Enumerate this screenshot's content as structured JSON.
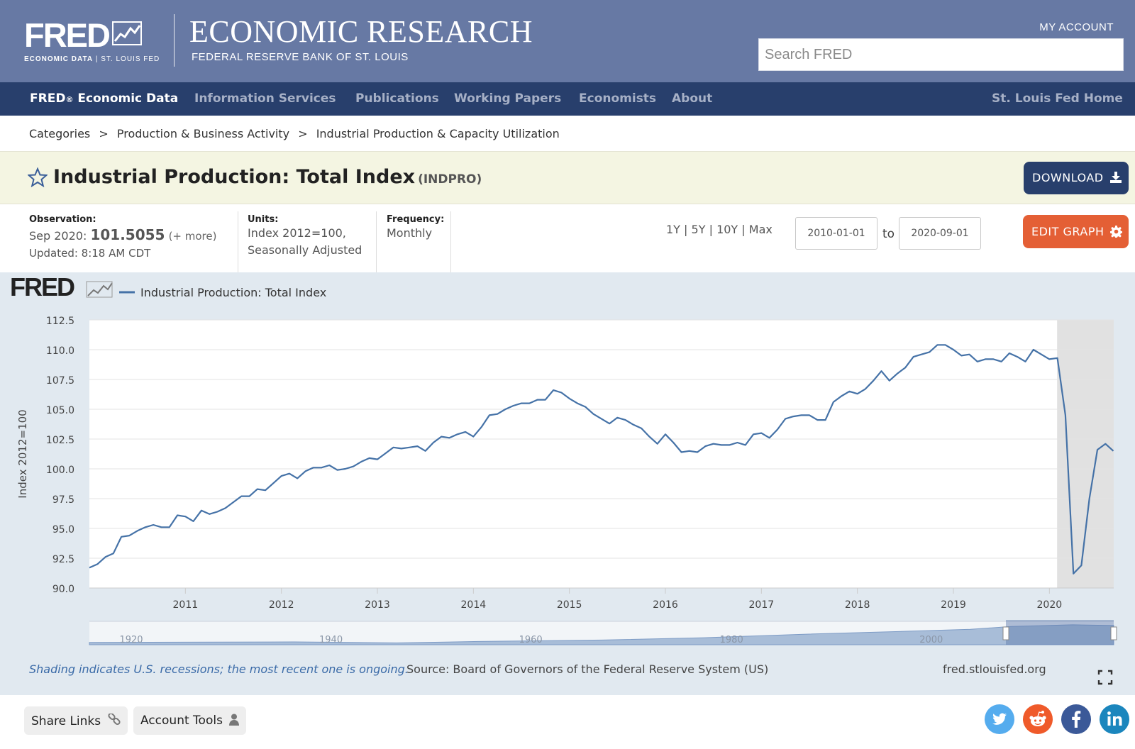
{
  "header": {
    "logo_text": "FRED",
    "logo_sub_bold": "ECONOMIC DATA",
    "logo_sub_sep": "|",
    "logo_sub_rest": "ST. LOUIS FED",
    "title": "ECONOMIC RESEARCH",
    "subtitle": "FEDERAL RESERVE BANK OF ST. LOUIS",
    "my_account": "MY ACCOUNT",
    "search_placeholder": "Search FRED"
  },
  "nav": {
    "items": [
      {
        "label": "FRED",
        "suffix": "®",
        "rest": " Economic Data"
      },
      {
        "label": "Information Services"
      },
      {
        "label": "Publications"
      },
      {
        "label": "Working Papers"
      },
      {
        "label": "Economists"
      },
      {
        "label": "About"
      }
    ],
    "right": "St. Louis Fed Home"
  },
  "breadcrumb": {
    "items": [
      "Categories",
      ">",
      "Production & Business Activity",
      ">",
      "Industrial Production & Capacity Utilization"
    ]
  },
  "series": {
    "title": "Industrial Production: Total Index",
    "id": "(INDPRO)",
    "download_label": "DOWNLOAD"
  },
  "meta": {
    "observation_label": "Observation:",
    "observation_date": "Sep 2020:",
    "observation_value": "101.5055",
    "more": "(+ more)",
    "updated": "Updated: 8:18 AM CDT",
    "units_label": "Units:",
    "units_line1": "Index 2012=100,",
    "units_line2": "Seasonally Adjusted",
    "frequency_label": "Frequency:",
    "frequency": "Monthly"
  },
  "controls": {
    "ranges": [
      "1Y",
      "|",
      "5Y",
      "|",
      "10Y",
      "|",
      "Max"
    ],
    "start_date": "2010-01-01",
    "to": "to",
    "end_date": "2020-09-01",
    "edit_label": "EDIT GRAPH"
  },
  "chart_data": {
    "type": "line",
    "logo": "FRED",
    "legend": "Industrial Production: Total Index",
    "ylabel": "Index 2012=100",
    "ylim": [
      90.0,
      112.5
    ],
    "yticks": [
      "112.5",
      "110.0",
      "107.5",
      "105.0",
      "102.5",
      "100.0",
      "97.5",
      "95.0",
      "92.5",
      "90.0"
    ],
    "xlim": [
      2010.0,
      2020.67
    ],
    "xticks": [
      "2011",
      "2012",
      "2013",
      "2014",
      "2015",
      "2016",
      "2017",
      "2018",
      "2019",
      "2020"
    ],
    "recession": [
      2020.08,
      2020.67
    ],
    "navigator_labels": [
      "1920",
      "1940",
      "1960",
      "1980",
      "2000"
    ],
    "series": [
      {
        "name": "Industrial Production: Total Index",
        "x_start": "2010-01",
        "values": [
          91.7,
          92.0,
          92.6,
          92.9,
          94.3,
          94.4,
          94.8,
          95.1,
          95.3,
          95.1,
          95.1,
          96.1,
          96.0,
          95.6,
          96.5,
          96.2,
          96.4,
          96.7,
          97.2,
          97.7,
          97.7,
          98.3,
          98.2,
          98.8,
          99.4,
          99.6,
          99.2,
          99.8,
          100.1,
          100.1,
          100.3,
          99.9,
          100.0,
          100.2,
          100.6,
          100.9,
          100.8,
          101.3,
          101.8,
          101.7,
          101.8,
          101.9,
          101.5,
          102.2,
          102.7,
          102.6,
          102.9,
          103.1,
          102.7,
          103.5,
          104.5,
          104.6,
          105.0,
          105.3,
          105.5,
          105.5,
          105.8,
          105.8,
          106.6,
          106.4,
          105.9,
          105.5,
          105.2,
          104.6,
          104.2,
          103.8,
          104.3,
          104.1,
          103.7,
          103.4,
          102.7,
          102.1,
          102.9,
          102.2,
          101.4,
          101.5,
          101.4,
          101.9,
          102.1,
          102.0,
          102.0,
          102.2,
          102.0,
          102.9,
          103.0,
          102.6,
          103.3,
          104.2,
          104.4,
          104.5,
          104.5,
          104.1,
          104.1,
          105.6,
          106.1,
          106.5,
          106.3,
          106.7,
          107.4,
          108.2,
          107.4,
          108.0,
          108.5,
          109.4,
          109.6,
          109.8,
          110.4,
          110.4,
          110.0,
          109.5,
          109.6,
          109.0,
          109.2,
          109.2,
          109.0,
          109.7,
          109.4,
          109.0,
          110.0,
          109.6,
          109.2,
          109.3,
          104.5,
          91.2,
          91.9,
          97.5,
          101.6,
          102.1,
          101.5
        ]
      }
    ],
    "footer_note": "Shading indicates U.S. recessions; the most recent one is ongoing.",
    "source": "Source: Board of Governors of the Federal Reserve System (US)",
    "site": "fred.stlouisfed.org"
  },
  "bottom": {
    "share_links": "Share Links",
    "account_tools": "Account Tools"
  },
  "social": {
    "twitter_color": "#55acee",
    "reddit_color": "#ef5a2a",
    "facebook_color": "#3b5998",
    "linkedin_color": "#1b86bd"
  },
  "colors": {
    "header_bg": "#6779a4",
    "nav_bg": "#283f6c",
    "line": "#4572a7",
    "edit_button": "#e45f35"
  }
}
